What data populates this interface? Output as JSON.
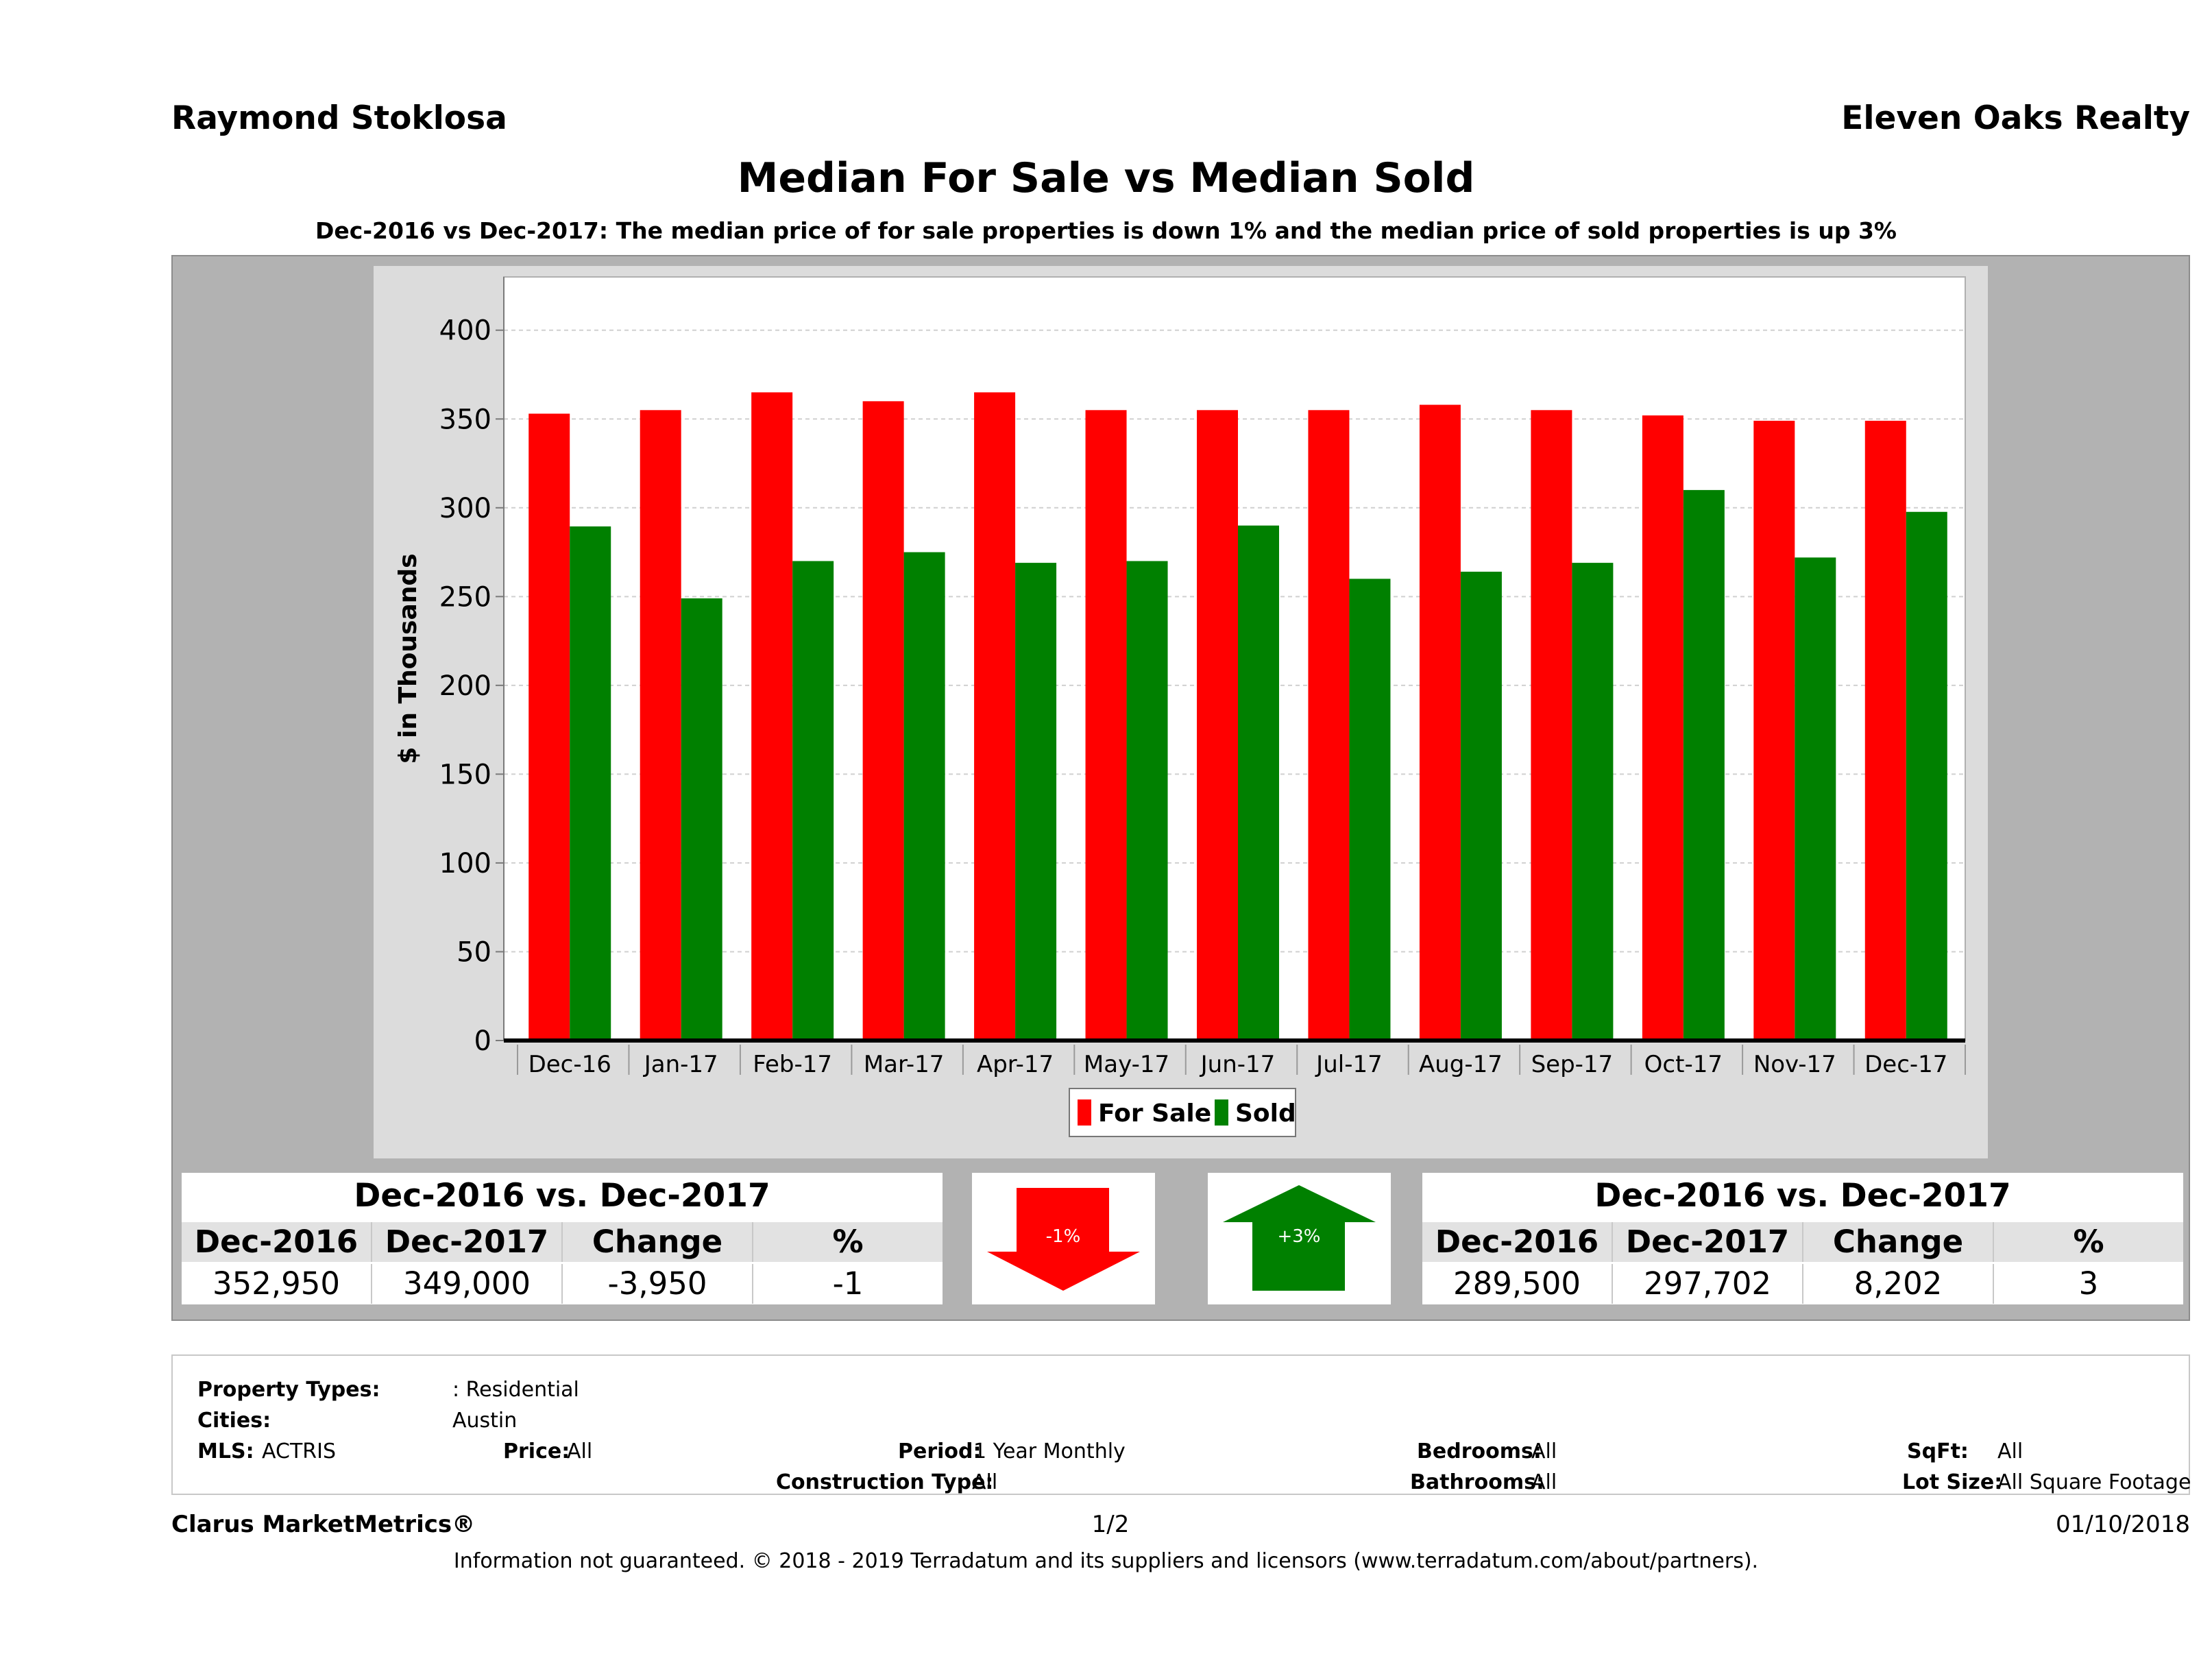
{
  "header": {
    "agent": "Raymond Stoklosa",
    "company": "Eleven Oaks Realty"
  },
  "title": "Median For Sale vs Median Sold",
  "subtitle": "Dec-2016 vs Dec-2017: The median price of for sale properties is down 1% and the median price of sold properties is up 3%",
  "colors": {
    "for_sale": "#ff0000",
    "sold": "#008000",
    "panel": "#b2b2b2",
    "plot_bg": "#dcdcdc"
  },
  "chart_data": {
    "type": "bar",
    "ylabel": "$ in Thousands",
    "xlabel": "",
    "ylim": [
      0,
      430
    ],
    "yticks": [
      0,
      50,
      100,
      150,
      200,
      250,
      300,
      350,
      400
    ],
    "grid": true,
    "legend_position": "bottom",
    "categories": [
      "Dec-16",
      "Jan-17",
      "Feb-17",
      "Mar-17",
      "Apr-17",
      "May-17",
      "Jun-17",
      "Jul-17",
      "Aug-17",
      "Sep-17",
      "Oct-17",
      "Nov-17",
      "Dec-17"
    ],
    "series": [
      {
        "name": "For Sale",
        "color": "#ff0000",
        "values": [
          353,
          355,
          365,
          360,
          365,
          355,
          355,
          355,
          358,
          355,
          352,
          349,
          349
        ]
      },
      {
        "name": "Sold",
        "color": "#008000",
        "values": [
          289.5,
          249,
          270,
          275,
          269,
          270,
          290,
          260,
          264,
          269,
          310,
          272,
          297.7
        ]
      }
    ]
  },
  "for_sale_table": {
    "title": "Dec-2016 vs. Dec-2017",
    "headers": [
      "Dec-2016",
      "Dec-2017",
      "Change",
      "%"
    ],
    "values": [
      "352,950",
      "349,000",
      "-3,950",
      "-1"
    ]
  },
  "sold_table": {
    "title": "Dec-2016 vs. Dec-2017",
    "headers": [
      "Dec-2016",
      "Dec-2017",
      "Change",
      "%"
    ],
    "values": [
      "289,500",
      "297,702",
      "8,202",
      "3"
    ]
  },
  "arrows": {
    "down_label": "-1%",
    "up_label": "+3%"
  },
  "filters": {
    "property_types_label": "Property Types:",
    "property_types_value": ": Residential",
    "cities_label": "Cities:",
    "cities_value": "Austin",
    "mls_label": "MLS:",
    "mls_value": "ACTRIS",
    "price_label": "Price:",
    "price_value": "All",
    "period_label": "Period:",
    "period_value": "1 Year Monthly",
    "construction_label": "Construction Type:",
    "construction_value": "All",
    "bedrooms_label": "Bedrooms:",
    "bedrooms_value": "All",
    "bathrooms_label": "Bathrooms:",
    "bathrooms_value": "All",
    "sqft_label": "SqFt:",
    "sqft_value": "All",
    "lot_label": "Lot Size:",
    "lot_value": "All Square Footage"
  },
  "footer": {
    "brand": "Clarus MarketMetrics®",
    "page": "1/2",
    "date": "01/10/2018",
    "disclaimer": "Information not guaranteed. © 2018 - 2019 Terradatum and its suppliers and licensors (www.terradatum.com/about/partners)."
  }
}
